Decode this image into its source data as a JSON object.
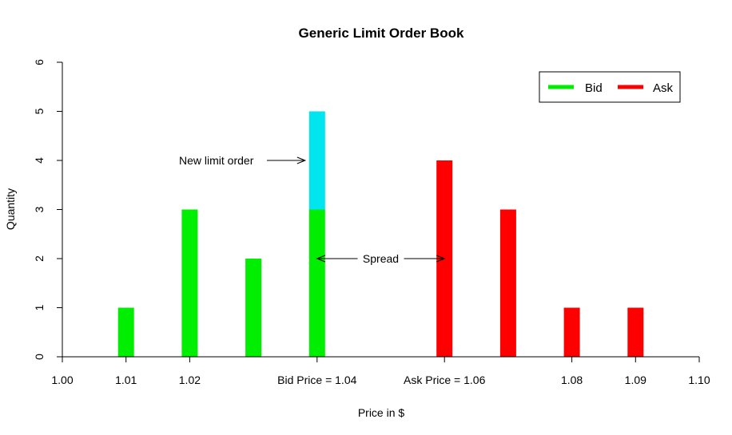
{
  "chart_data": {
    "type": "bar",
    "title": "Generic Limit Order Book",
    "xlabel": "Price in $",
    "ylabel": "Quantity",
    "xlim": [
      1.0,
      1.1
    ],
    "ylim": [
      0,
      6
    ],
    "x_ticks": [
      {
        "value": 1.0,
        "label": "1.00"
      },
      {
        "value": 1.01,
        "label": "1.01"
      },
      {
        "value": 1.02,
        "label": "1.02"
      },
      {
        "value": 1.04,
        "label": "Bid Price = 1.04"
      },
      {
        "value": 1.06,
        "label": "Ask Price = 1.06"
      },
      {
        "value": 1.08,
        "label": "1.08"
      },
      {
        "value": 1.09,
        "label": "1.09"
      },
      {
        "value": 1.1,
        "label": "1.10"
      }
    ],
    "y_ticks": [
      0,
      1,
      2,
      3,
      4,
      5,
      6
    ],
    "legend_position": "top-right",
    "grid": false,
    "series": [
      {
        "name": "Bid",
        "color": "#00ee00",
        "points": [
          {
            "x": 1.01,
            "y": 1
          },
          {
            "x": 1.02,
            "y": 3
          },
          {
            "x": 1.03,
            "y": 2
          },
          {
            "x": 1.04,
            "y": 3
          }
        ]
      },
      {
        "name": "Ask",
        "color": "#ff0000",
        "points": [
          {
            "x": 1.06,
            "y": 4
          },
          {
            "x": 1.07,
            "y": 3
          },
          {
            "x": 1.08,
            "y": 1
          },
          {
            "x": 1.09,
            "y": 1
          }
        ]
      },
      {
        "color": "#00e5ee",
        "points": [
          {
            "x": 1.04,
            "y_from": 3,
            "y_to": 5
          }
        ]
      }
    ],
    "annotations": [
      {
        "id": "new_limit_order",
        "text": "New limit order",
        "target_x": 1.04,
        "target_y": 4
      },
      {
        "id": "spread",
        "text": "Spread",
        "from_x": 1.04,
        "to_x": 1.06,
        "y": 2
      }
    ]
  }
}
